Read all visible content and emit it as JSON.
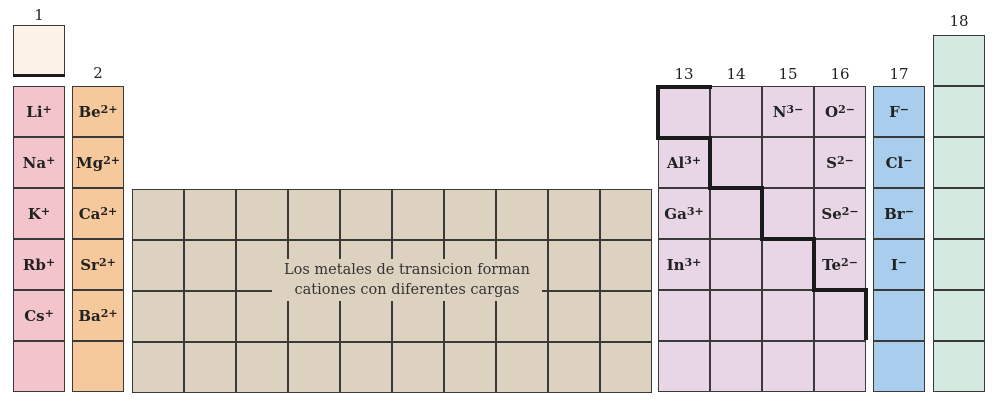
{
  "colors": {
    "g1": "#f4c4cd",
    "h": "#fdf2e8",
    "g2": "#f6c99d",
    "tm": "#ddd2c0",
    "p": "#e8d6e6",
    "g17": "#a9cdec",
    "g18": "#d4e9e0"
  },
  "group_labels": [
    {
      "id": "1",
      "text": "1"
    },
    {
      "id": "2",
      "text": "2"
    },
    {
      "id": "13",
      "text": "13"
    },
    {
      "id": "14",
      "text": "14"
    },
    {
      "id": "15",
      "text": "15"
    },
    {
      "id": "16",
      "text": "16"
    },
    {
      "id": "17",
      "text": "17"
    },
    {
      "id": "18",
      "text": "18"
    }
  ],
  "ions": [
    {
      "group": "1",
      "row": 1,
      "symbol": "Li",
      "charge": "+"
    },
    {
      "group": "1",
      "row": 2,
      "symbol": "Na",
      "charge": "+"
    },
    {
      "group": "1",
      "row": 3,
      "symbol": "K",
      "charge": "+"
    },
    {
      "group": "1",
      "row": 4,
      "symbol": "Rb",
      "charge": "+"
    },
    {
      "group": "1",
      "row": 5,
      "symbol": "Cs",
      "charge": "+"
    },
    {
      "group": "2",
      "row": 1,
      "symbol": "Be",
      "charge": "2+"
    },
    {
      "group": "2",
      "row": 2,
      "symbol": "Mg",
      "charge": "2+"
    },
    {
      "group": "2",
      "row": 3,
      "symbol": "Ca",
      "charge": "2+"
    },
    {
      "group": "2",
      "row": 4,
      "symbol": "Sr",
      "charge": "2+"
    },
    {
      "group": "2",
      "row": 5,
      "symbol": "Ba",
      "charge": "2+"
    },
    {
      "group": "13",
      "row": 2,
      "symbol": "Al",
      "charge": "3+"
    },
    {
      "group": "13",
      "row": 3,
      "symbol": "Ga",
      "charge": "3+"
    },
    {
      "group": "13",
      "row": 4,
      "symbol": "In",
      "charge": "3+"
    },
    {
      "group": "15",
      "row": 1,
      "symbol": "N",
      "charge": "3−"
    },
    {
      "group": "16",
      "row": 1,
      "symbol": "O",
      "charge": "2−"
    },
    {
      "group": "16",
      "row": 2,
      "symbol": "S",
      "charge": "2−"
    },
    {
      "group": "16",
      "row": 3,
      "symbol": "Se",
      "charge": "2−"
    },
    {
      "group": "16",
      "row": 4,
      "symbol": "Te",
      "charge": "2−"
    },
    {
      "group": "17",
      "row": 1,
      "symbol": "F",
      "charge": "−"
    },
    {
      "group": "17",
      "row": 2,
      "symbol": "Cl",
      "charge": "−"
    },
    {
      "group": "17",
      "row": 3,
      "symbol": "Br",
      "charge": "−"
    },
    {
      "group": "17",
      "row": 4,
      "symbol": "I",
      "charge": "−"
    }
  ],
  "transition_note": {
    "line1": "Los metales de transicion forman",
    "line2": "cationes con diferentes cargas"
  }
}
